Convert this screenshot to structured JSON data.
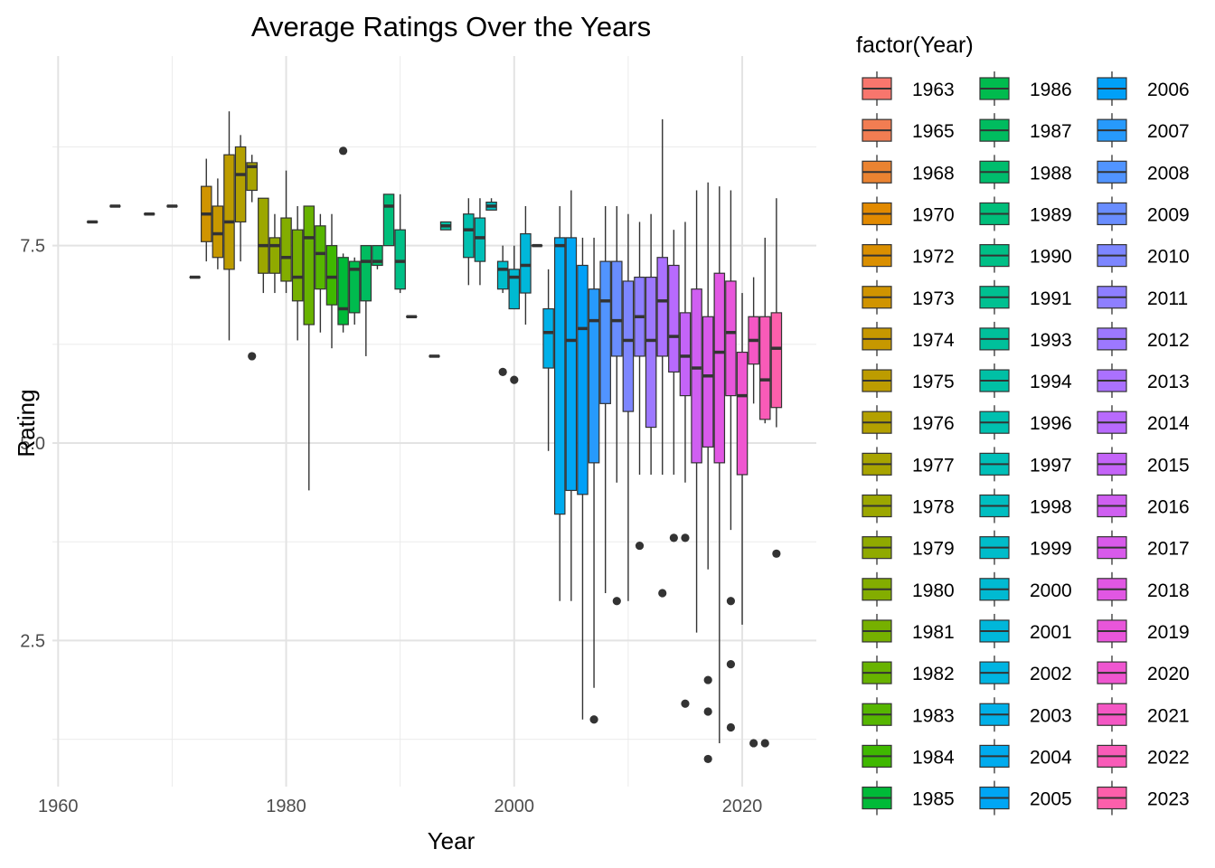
{
  "chart_data": {
    "type": "boxplot",
    "title": "Average Ratings Over the Years",
    "xlabel": "Year",
    "ylabel": "Rating",
    "xlim": [
      1959.5,
      2026.5
    ],
    "ylim": [
      0.65,
      9.9
    ],
    "x_ticks": [
      1960,
      1980,
      2000,
      2020
    ],
    "x_tick_labels": [
      "1960",
      "1980",
      "2000",
      "2020"
    ],
    "y_ticks": [
      2.5,
      5.0,
      7.5
    ],
    "y_tick_labels": [
      "2.5",
      "5.0",
      "7.5"
    ],
    "grid": true,
    "legend": {
      "title": "factor(Year)",
      "position": "right",
      "columns": 3
    },
    "series": [
      {
        "name": "1963",
        "year": 1963,
        "color": "#F8766D",
        "min": 7.8,
        "q1": 7.8,
        "median": 7.8,
        "q3": 7.8,
        "max": 7.8,
        "outliers": []
      },
      {
        "name": "1965",
        "year": 1965,
        "color": "#F27D52",
        "min": 8.0,
        "q1": 8.0,
        "median": 8.0,
        "q3": 8.0,
        "max": 8.0,
        "outliers": []
      },
      {
        "name": "1968",
        "year": 1968,
        "color": "#EA8331",
        "min": 7.9,
        "q1": 7.9,
        "median": 7.9,
        "q3": 7.9,
        "max": 7.9,
        "outliers": []
      },
      {
        "name": "1970",
        "year": 1970,
        "color": "#E28A00",
        "min": 8.0,
        "q1": 8.0,
        "median": 8.0,
        "q3": 8.0,
        "max": 8.0,
        "outliers": []
      },
      {
        "name": "1972",
        "year": 1972,
        "color": "#DA8F00",
        "min": 7.1,
        "q1": 7.1,
        "median": 7.1,
        "q3": 7.1,
        "max": 7.1,
        "outliers": []
      },
      {
        "name": "1973",
        "year": 1973,
        "color": "#D09400",
        "min": 7.3,
        "q1": 7.55,
        "median": 7.9,
        "q3": 8.25,
        "max": 8.6,
        "outliers": []
      },
      {
        "name": "1974",
        "year": 1974,
        "color": "#C79800",
        "min": 7.2,
        "q1": 7.35,
        "median": 7.65,
        "q3": 8.0,
        "max": 8.35,
        "outliers": []
      },
      {
        "name": "1975",
        "year": 1975,
        "color": "#BD9C00",
        "min": 6.3,
        "q1": 7.2,
        "median": 7.8,
        "q3": 8.65,
        "max": 9.2,
        "outliers": []
      },
      {
        "name": "1976",
        "year": 1976,
        "color": "#B3A000",
        "min": 7.3,
        "q1": 7.8,
        "median": 8.4,
        "q3": 8.75,
        "max": 8.9,
        "outliers": []
      },
      {
        "name": "1977",
        "year": 1977,
        "color": "#A8A400",
        "min": 8.05,
        "q1": 8.2,
        "median": 8.5,
        "q3": 8.55,
        "max": 8.65,
        "outliers": [
          6.1
        ]
      },
      {
        "name": "1978",
        "year": 1978,
        "color": "#9CA700",
        "min": 6.9,
        "q1": 7.15,
        "median": 7.5,
        "q3": 8.1,
        "max": 8.1,
        "outliers": []
      },
      {
        "name": "1979",
        "year": 1979,
        "color": "#90AA00",
        "min": 6.9,
        "q1": 7.15,
        "median": 7.5,
        "q3": 7.6,
        "max": 7.9,
        "outliers": []
      },
      {
        "name": "1980",
        "year": 1980,
        "color": "#83AD00",
        "min": 6.9,
        "q1": 7.05,
        "median": 7.35,
        "q3": 7.85,
        "max": 8.45,
        "outliers": []
      },
      {
        "name": "1981",
        "year": 1981,
        "color": "#76B000",
        "min": 6.3,
        "q1": 6.8,
        "median": 7.1,
        "q3": 7.7,
        "max": 8.0,
        "outliers": []
      },
      {
        "name": "1982",
        "year": 1982,
        "color": "#68B300",
        "min": 4.4,
        "q1": 6.5,
        "median": 7.6,
        "q3": 8.0,
        "max": 8.0,
        "outliers": []
      },
      {
        "name": "1983",
        "year": 1983,
        "color": "#56B600",
        "min": 6.4,
        "q1": 6.95,
        "median": 7.4,
        "q3": 7.75,
        "max": 7.9,
        "outliers": []
      },
      {
        "name": "1984",
        "year": 1984,
        "color": "#3FB800",
        "min": 6.2,
        "q1": 6.75,
        "median": 7.1,
        "q3": 7.5,
        "max": 7.9,
        "outliers": []
      },
      {
        "name": "1985",
        "year": 1985,
        "color": "#00BA38",
        "min": 6.4,
        "q1": 6.5,
        "median": 6.7,
        "q3": 7.35,
        "max": 7.4,
        "outliers": [
          8.7
        ]
      },
      {
        "name": "1986",
        "year": 1986,
        "color": "#00BB4E",
        "min": 6.5,
        "q1": 6.65,
        "median": 7.2,
        "q3": 7.3,
        "max": 7.35,
        "outliers": []
      },
      {
        "name": "1987",
        "year": 1987,
        "color": "#00BC5F",
        "min": 6.1,
        "q1": 6.8,
        "median": 7.3,
        "q3": 7.5,
        "max": 7.5,
        "outliers": []
      },
      {
        "name": "1988",
        "year": 1988,
        "color": "#00BD6D",
        "min": 7.2,
        "q1": 7.25,
        "median": 7.3,
        "q3": 7.5,
        "max": 7.5,
        "outliers": []
      },
      {
        "name": "1989",
        "year": 1989,
        "color": "#00BE7A",
        "min": 7.5,
        "q1": 7.5,
        "median": 8.0,
        "q3": 8.15,
        "max": 8.15,
        "outliers": []
      },
      {
        "name": "1990",
        "year": 1990,
        "color": "#00BF86",
        "min": 6.9,
        "q1": 6.95,
        "median": 7.3,
        "q3": 7.7,
        "max": 8.15,
        "outliers": []
      },
      {
        "name": "1991",
        "year": 1991,
        "color": "#00C091",
        "min": 6.6,
        "q1": 6.6,
        "median": 6.6,
        "q3": 6.6,
        "max": 6.6,
        "outliers": []
      },
      {
        "name": "1993",
        "year": 1993,
        "color": "#00C09B",
        "min": 6.1,
        "q1": 6.1,
        "median": 6.1,
        "q3": 6.1,
        "max": 6.1,
        "outliers": []
      },
      {
        "name": "1994",
        "year": 1994,
        "color": "#00C0A5",
        "min": 7.7,
        "q1": 7.7,
        "median": 7.75,
        "q3": 7.8,
        "max": 7.8,
        "outliers": []
      },
      {
        "name": "1996",
        "year": 1996,
        "color": "#00C0AF",
        "min": 7.0,
        "q1": 7.35,
        "median": 7.7,
        "q3": 7.9,
        "max": 8.1,
        "outliers": []
      },
      {
        "name": "1997",
        "year": 1997,
        "color": "#00BFB8",
        "min": 7.0,
        "q1": 7.3,
        "median": 7.6,
        "q3": 7.85,
        "max": 8.1,
        "outliers": []
      },
      {
        "name": "1998",
        "year": 1998,
        "color": "#00BEC1",
        "min": 7.95,
        "q1": 7.95,
        "median": 8.0,
        "q3": 8.05,
        "max": 8.1,
        "outliers": []
      },
      {
        "name": "1999",
        "year": 1999,
        "color": "#00BCCA",
        "min": 6.9,
        "q1": 6.95,
        "median": 7.2,
        "q3": 7.3,
        "max": 7.5,
        "outliers": [
          5.9
        ]
      },
      {
        "name": "2000",
        "year": 2000,
        "color": "#00BAD2",
        "min": 6.7,
        "q1": 6.7,
        "median": 7.1,
        "q3": 7.2,
        "max": 7.5,
        "outliers": [
          5.8
        ]
      },
      {
        "name": "2001",
        "year": 2001,
        "color": "#00B7DA",
        "min": 6.5,
        "q1": 6.9,
        "median": 7.25,
        "q3": 7.65,
        "max": 8.0,
        "outliers": []
      },
      {
        "name": "2002",
        "year": 2002,
        "color": "#00B4E1",
        "min": 7.5,
        "q1": 7.5,
        "median": 7.5,
        "q3": 7.5,
        "max": 7.5,
        "outliers": []
      },
      {
        "name": "2003",
        "year": 2003,
        "color": "#00B0E8",
        "min": 4.9,
        "q1": 5.95,
        "median": 6.4,
        "q3": 6.7,
        "max": 7.2,
        "outliers": []
      },
      {
        "name": "2004",
        "year": 2004,
        "color": "#00ABEE",
        "min": 3.0,
        "q1": 4.1,
        "median": 7.5,
        "q3": 7.6,
        "max": 8.0,
        "outliers": []
      },
      {
        "name": "2005",
        "year": 2005,
        "color": "#00A6F4",
        "min": 3.0,
        "q1": 4.4,
        "median": 6.3,
        "q3": 7.6,
        "max": 8.2,
        "outliers": []
      },
      {
        "name": "2006",
        "year": 2006,
        "color": "#00A0F8",
        "min": 1.5,
        "q1": 4.35,
        "median": 6.45,
        "q3": 7.25,
        "max": 7.6,
        "outliers": []
      },
      {
        "name": "2007",
        "year": 2007,
        "color": "#279AFC",
        "min": 1.9,
        "q1": 4.75,
        "median": 6.55,
        "q3": 6.95,
        "max": 7.6,
        "outliers": [
          1.5
        ]
      },
      {
        "name": "2008",
        "year": 2008,
        "color": "#5194FF",
        "min": 3.1,
        "q1": 5.5,
        "median": 6.8,
        "q3": 7.3,
        "max": 8.0,
        "outliers": []
      },
      {
        "name": "2009",
        "year": 2009,
        "color": "#698DFF",
        "min": 4.5,
        "q1": 6.1,
        "median": 6.55,
        "q3": 7.3,
        "max": 8.0,
        "outliers": [
          3.0
        ]
      },
      {
        "name": "2010",
        "year": 2010,
        "color": "#7D86FF",
        "min": 3.0,
        "q1": 5.4,
        "median": 6.3,
        "q3": 7.05,
        "max": 7.9,
        "outliers": []
      },
      {
        "name": "2011",
        "year": 2011,
        "color": "#8E7FFF",
        "min": 4.6,
        "q1": 6.1,
        "median": 6.6,
        "q3": 7.1,
        "max": 7.8,
        "outliers": [
          3.7
        ]
      },
      {
        "name": "2012",
        "year": 2012,
        "color": "#9D78FF",
        "min": 4.6,
        "q1": 5.2,
        "median": 6.3,
        "q3": 7.1,
        "max": 7.9,
        "outliers": []
      },
      {
        "name": "2013",
        "year": 2013,
        "color": "#AB71FF",
        "min": 4.6,
        "q1": 6.1,
        "median": 6.8,
        "q3": 7.35,
        "max": 9.1,
        "outliers": [
          3.1
        ]
      },
      {
        "name": "2014",
        "year": 2014,
        "color": "#B86AFD",
        "min": 4.6,
        "q1": 5.9,
        "median": 6.35,
        "q3": 7.25,
        "max": 7.7,
        "outliers": [
          3.8
        ]
      },
      {
        "name": "2015",
        "year": 2015,
        "color": "#C464F8",
        "min": 4.5,
        "q1": 5.6,
        "median": 6.1,
        "q3": 6.65,
        "max": 7.8,
        "outliers": [
          3.8,
          1.7
        ]
      },
      {
        "name": "2016",
        "year": 2016,
        "color": "#CF5FF1",
        "min": 2.6,
        "q1": 4.75,
        "median": 5.95,
        "q3": 6.95,
        "max": 8.2,
        "outliers": []
      },
      {
        "name": "2017",
        "year": 2017,
        "color": "#D85AEB",
        "min": 3.4,
        "q1": 4.95,
        "median": 5.85,
        "q3": 6.6,
        "max": 8.3,
        "outliers": [
          2.0,
          1.6,
          1.0
        ]
      },
      {
        "name": "2018",
        "year": 2018,
        "color": "#E157E3",
        "min": 1.2,
        "q1": 4.75,
        "median": 6.15,
        "q3": 7.15,
        "max": 8.25,
        "outliers": []
      },
      {
        "name": "2019",
        "year": 2019,
        "color": "#E856DA",
        "min": 3.9,
        "q1": 5.6,
        "median": 6.4,
        "q3": 7.05,
        "max": 8.2,
        "outliers": [
          3.0,
          2.2,
          1.4
        ]
      },
      {
        "name": "2020",
        "year": 2020,
        "color": "#EF56D0",
        "min": 2.7,
        "q1": 4.6,
        "median": 5.6,
        "q3": 6.15,
        "max": 6.9,
        "outliers": []
      },
      {
        "name": "2021",
        "year": 2021,
        "color": "#F457C4",
        "min": 5.5,
        "q1": 6.0,
        "median": 6.3,
        "q3": 6.6,
        "max": 7.1,
        "outliers": [
          1.2
        ]
      },
      {
        "name": "2022",
        "year": 2022,
        "color": "#F95BB8",
        "min": 5.25,
        "q1": 5.3,
        "median": 5.8,
        "q3": 6.6,
        "max": 7.6,
        "outliers": [
          1.2
        ]
      },
      {
        "name": "2023",
        "year": 2023,
        "color": "#FC5FAB",
        "min": 5.2,
        "q1": 5.45,
        "median": 6.2,
        "q3": 6.65,
        "max": 8.1,
        "outliers": [
          3.6
        ]
      }
    ]
  }
}
